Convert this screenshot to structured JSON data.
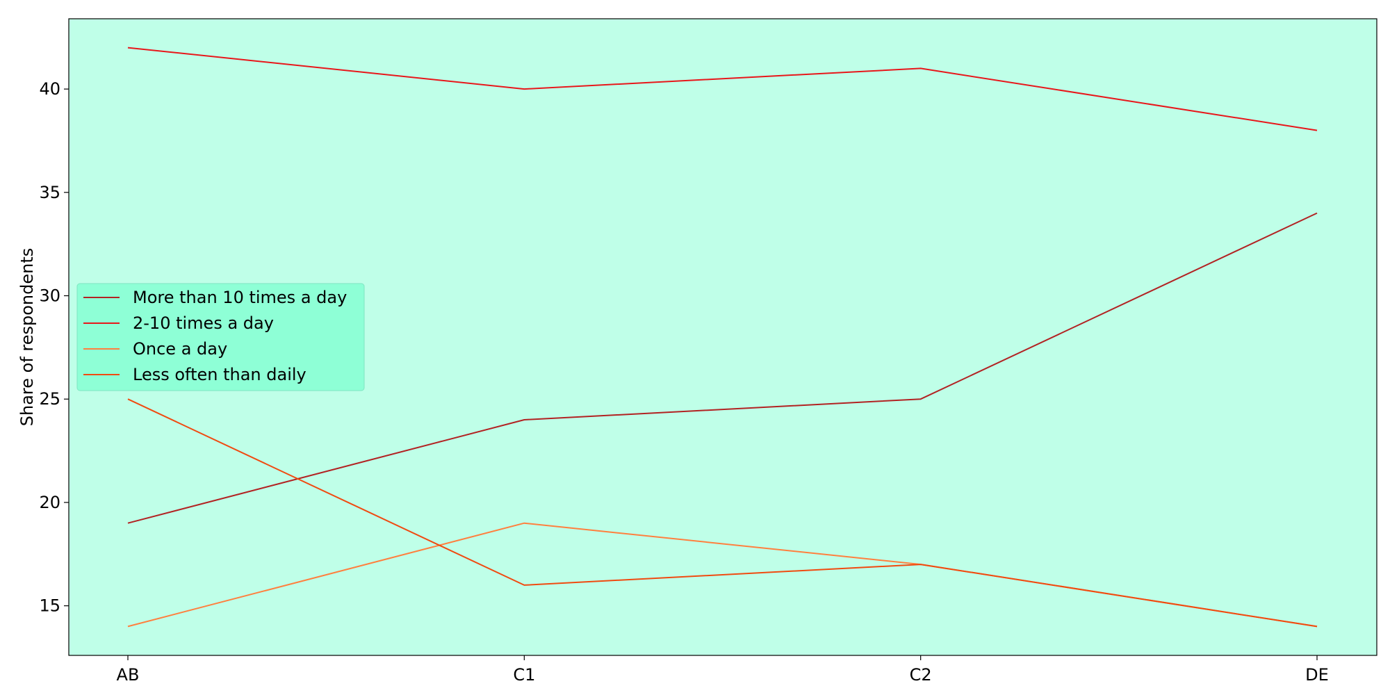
{
  "chart_data": {
    "type": "line",
    "title": "",
    "xlabel": "",
    "ylabel": "Share of respondents",
    "categories": [
      "AB",
      "C1",
      "C2",
      "DE"
    ],
    "ylim": [
      12.6,
      43.4
    ],
    "yticks": [
      15,
      20,
      25,
      30,
      35,
      40
    ],
    "grid": false,
    "legend_position": "center-left",
    "plot_background": "#bfffe8",
    "legend_background": "#8effd6",
    "series": [
      {
        "name": "More than 10 times a day",
        "values": [
          19,
          24,
          25,
          34
        ],
        "color": "#b22222"
      },
      {
        "name": "2-10 times a day",
        "values": [
          42,
          40,
          41,
          38
        ],
        "color": "#e8161a"
      },
      {
        "name": "Once a day",
        "values": [
          14,
          19,
          17,
          14
        ],
        "color": "#ff7f3e"
      },
      {
        "name": "Less often than daily",
        "values": [
          25,
          16,
          17,
          14
        ],
        "color": "#f04a10"
      }
    ]
  }
}
